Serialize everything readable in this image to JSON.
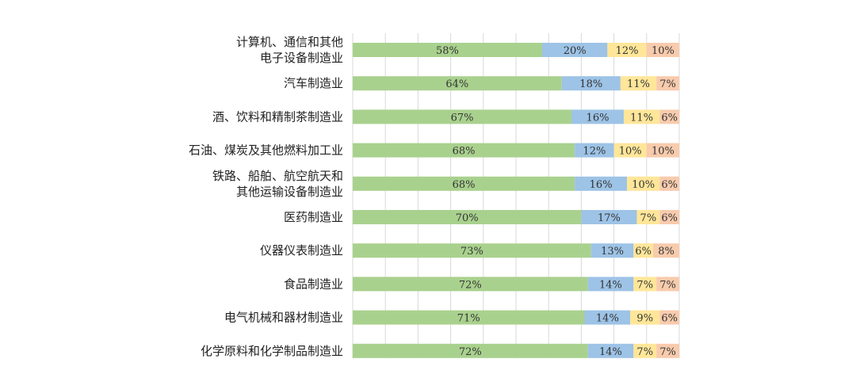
{
  "chart_data": {
    "type": "bar",
    "orientation": "horizontal",
    "stacked": true,
    "normalized_percent": true,
    "categories": [
      [
        "计算机、通信和其他",
        "电子设备制造业"
      ],
      [
        "汽车制造业"
      ],
      [
        "酒、饮料和精制茶制造业"
      ],
      [
        "石油、煤炭及其他燃料加工业"
      ],
      [
        "铁路、船舶、航空航天和",
        "其他运输设备制造业"
      ],
      [
        "医药制造业"
      ],
      [
        "仪器仪表制造业"
      ],
      [
        "食品制造业"
      ],
      [
        "电气机械和器材制造业"
      ],
      [
        "化学原料和化学制品制造业"
      ]
    ],
    "series": [
      {
        "color": "#a9d18e",
        "values": [
          58,
          64,
          67,
          68,
          68,
          70,
          73,
          72,
          71,
          72
        ]
      },
      {
        "color": "#9dc3e6",
        "values": [
          20,
          18,
          16,
          12,
          16,
          17,
          13,
          14,
          14,
          14
        ]
      },
      {
        "color": "#ffe699",
        "values": [
          12,
          11,
          11,
          10,
          10,
          7,
          6,
          7,
          9,
          7
        ]
      },
      {
        "color": "#f8cbad",
        "values": [
          10,
          7,
          6,
          10,
          6,
          6,
          8,
          7,
          6,
          7
        ]
      }
    ],
    "value_suffix": "%",
    "xlim": [
      0,
      100
    ],
    "grid": true,
    "legend": "none"
  }
}
